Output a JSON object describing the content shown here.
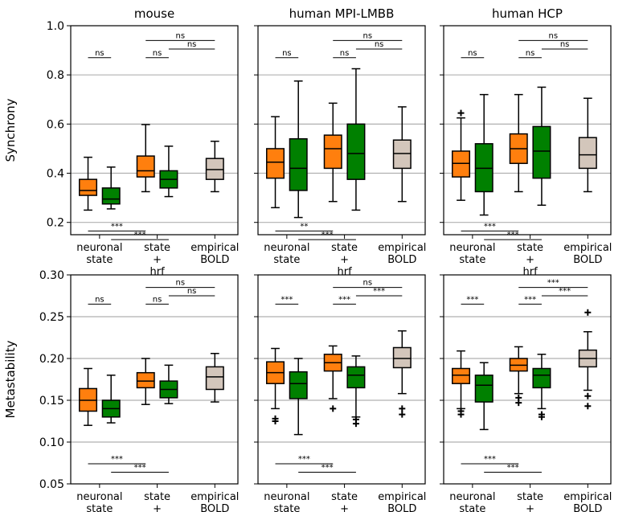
{
  "colors": {
    "orange": "#ff7f0e",
    "green": "#008000",
    "beige": "#d3c6bb",
    "grid": "#b0b0b0",
    "axis": "#000000"
  },
  "chart_data": {
    "type": "boxplot",
    "category_labels": [
      {
        "id": "neuronal",
        "lines": [
          "neuronal",
          "state"
        ]
      },
      {
        "id": "state",
        "lines": [
          "state",
          "+",
          "hrf"
        ]
      },
      {
        "id": "empirical",
        "lines": [
          "empirical",
          "BOLD"
        ]
      }
    ],
    "boxes_legend": [
      "neuronal state (orange)",
      "neuronal state (green)",
      "state + hrf (orange)",
      "state + hrf (green)",
      "empirical BOLD (beige)"
    ],
    "rows": [
      {
        "ylabel": "Synchrony",
        "ylim": [
          0.15,
          1.0
        ],
        "yticks": [
          {
            "v": 0.2,
            "label": "0.2"
          },
          {
            "v": 0.4,
            "label": "0.4"
          },
          {
            "v": 0.6,
            "label": "0.6"
          },
          {
            "v": 0.8,
            "label": "0.8"
          },
          {
            "v": 1.0,
            "label": "1.0"
          }
        ],
        "panels": [
          {
            "title": "mouse",
            "boxes": [
              {
                "pos": 0.8,
                "color": "orange",
                "q1": 0.31,
                "med": 0.33,
                "q3": 0.375,
                "lo": 0.25,
                "hi": 0.465,
                "fl": []
              },
              {
                "pos": 1.2,
                "color": "green",
                "q1": 0.275,
                "med": 0.295,
                "q3": 0.34,
                "lo": 0.255,
                "hi": 0.425,
                "fl": []
              },
              {
                "pos": 1.8,
                "color": "orange",
                "q1": 0.385,
                "med": 0.41,
                "q3": 0.47,
                "lo": 0.325,
                "hi": 0.598,
                "fl": []
              },
              {
                "pos": 2.2,
                "color": "green",
                "q1": 0.34,
                "med": 0.375,
                "q3": 0.41,
                "lo": 0.305,
                "hi": 0.51,
                "fl": []
              },
              {
                "pos": 3.0,
                "color": "beige",
                "q1": 0.375,
                "med": 0.415,
                "q3": 0.46,
                "lo": 0.325,
                "hi": 0.53,
                "fl": []
              }
            ],
            "sig": [
              {
                "x1": 0.8,
                "x2": 1.2,
                "y": 0.87,
                "label": "ns"
              },
              {
                "x1": 1.8,
                "x2": 2.2,
                "y": 0.87,
                "label": "ns"
              },
              {
                "x1": 2.2,
                "x2": 3.0,
                "y": 0.905,
                "label": "ns"
              },
              {
                "x1": 1.8,
                "x2": 3.0,
                "y": 0.94,
                "label": "ns"
              },
              {
                "x1": 0.8,
                "x2": 1.8,
                "y": 0.165,
                "label": "***"
              },
              {
                "x1": 1.2,
                "x2": 2.2,
                "y": 0.13,
                "label": "***"
              }
            ]
          },
          {
            "title": "human MPI-LMBB",
            "boxes": [
              {
                "pos": 0.8,
                "color": "orange",
                "q1": 0.38,
                "med": 0.445,
                "q3": 0.5,
                "lo": 0.26,
                "hi": 0.63,
                "fl": []
              },
              {
                "pos": 1.2,
                "color": "green",
                "q1": 0.33,
                "med": 0.42,
                "q3": 0.54,
                "lo": 0.22,
                "hi": 0.775,
                "fl": []
              },
              {
                "pos": 1.8,
                "color": "orange",
                "q1": 0.42,
                "med": 0.5,
                "q3": 0.555,
                "lo": 0.285,
                "hi": 0.685,
                "fl": []
              },
              {
                "pos": 2.2,
                "color": "green",
                "q1": 0.375,
                "med": 0.48,
                "q3": 0.6,
                "lo": 0.25,
                "hi": 0.825,
                "fl": []
              },
              {
                "pos": 3.0,
                "color": "beige",
                "q1": 0.42,
                "med": 0.48,
                "q3": 0.535,
                "lo": 0.285,
                "hi": 0.67,
                "fl": []
              }
            ],
            "sig": [
              {
                "x1": 0.8,
                "x2": 1.2,
                "y": 0.87,
                "label": "ns"
              },
              {
                "x1": 1.8,
                "x2": 2.2,
                "y": 0.87,
                "label": "ns"
              },
              {
                "x1": 2.2,
                "x2": 3.0,
                "y": 0.905,
                "label": "ns"
              },
              {
                "x1": 1.8,
                "x2": 3.0,
                "y": 0.94,
                "label": "ns"
              },
              {
                "x1": 0.8,
                "x2": 1.8,
                "y": 0.165,
                "label": "**"
              },
              {
                "x1": 1.2,
                "x2": 2.2,
                "y": 0.13,
                "label": "***"
              }
            ]
          },
          {
            "title": "human HCP",
            "boxes": [
              {
                "pos": 0.8,
                "color": "orange",
                "q1": 0.385,
                "med": 0.44,
                "q3": 0.49,
                "lo": 0.29,
                "hi": 0.625,
                "fl": [
                  0.645
                ]
              },
              {
                "pos": 1.2,
                "color": "green",
                "q1": 0.325,
                "med": 0.42,
                "q3": 0.52,
                "lo": 0.23,
                "hi": 0.72,
                "fl": []
              },
              {
                "pos": 1.8,
                "color": "orange",
                "q1": 0.44,
                "med": 0.5,
                "q3": 0.56,
                "lo": 0.325,
                "hi": 0.72,
                "fl": []
              },
              {
                "pos": 2.2,
                "color": "green",
                "q1": 0.38,
                "med": 0.49,
                "q3": 0.59,
                "lo": 0.27,
                "hi": 0.75,
                "fl": []
              },
              {
                "pos": 3.0,
                "color": "beige",
                "q1": 0.42,
                "med": 0.475,
                "q3": 0.545,
                "lo": 0.325,
                "hi": 0.705,
                "fl": []
              }
            ],
            "sig": [
              {
                "x1": 0.8,
                "x2": 1.2,
                "y": 0.87,
                "label": "ns"
              },
              {
                "x1": 1.8,
                "x2": 2.2,
                "y": 0.87,
                "label": "ns"
              },
              {
                "x1": 2.2,
                "x2": 3.0,
                "y": 0.905,
                "label": "ns"
              },
              {
                "x1": 1.8,
                "x2": 3.0,
                "y": 0.94,
                "label": "ns"
              },
              {
                "x1": 0.8,
                "x2": 1.8,
                "y": 0.165,
                "label": "***"
              },
              {
                "x1": 1.2,
                "x2": 2.2,
                "y": 0.13,
                "label": "***"
              }
            ]
          }
        ]
      },
      {
        "ylabel": "Metastability",
        "ylim": [
          0.05,
          0.3
        ],
        "yticks": [
          {
            "v": 0.05,
            "label": "0.05"
          },
          {
            "v": 0.1,
            "label": "0.10"
          },
          {
            "v": 0.15,
            "label": "0.15"
          },
          {
            "v": 0.2,
            "label": "0.20"
          },
          {
            "v": 0.25,
            "label": "0.25"
          },
          {
            "v": 0.3,
            "label": "0.30"
          }
        ],
        "panels": [
          {
            "title": "",
            "boxes": [
              {
                "pos": 0.8,
                "color": "orange",
                "q1": 0.137,
                "med": 0.15,
                "q3": 0.164,
                "lo": 0.12,
                "hi": 0.188,
                "fl": []
              },
              {
                "pos": 1.2,
                "color": "green",
                "q1": 0.13,
                "med": 0.14,
                "q3": 0.15,
                "lo": 0.123,
                "hi": 0.18,
                "fl": []
              },
              {
                "pos": 1.8,
                "color": "orange",
                "q1": 0.165,
                "med": 0.173,
                "q3": 0.183,
                "lo": 0.145,
                "hi": 0.2,
                "fl": []
              },
              {
                "pos": 2.2,
                "color": "green",
                "q1": 0.153,
                "med": 0.163,
                "q3": 0.173,
                "lo": 0.146,
                "hi": 0.192,
                "fl": []
              },
              {
                "pos": 3.0,
                "color": "beige",
                "q1": 0.163,
                "med": 0.178,
                "q3": 0.19,
                "lo": 0.148,
                "hi": 0.206,
                "fl": []
              }
            ],
            "sig": [
              {
                "x1": 0.8,
                "x2": 1.2,
                "y": 0.265,
                "label": "ns"
              },
              {
                "x1": 1.8,
                "x2": 2.2,
                "y": 0.265,
                "label": "ns"
              },
              {
                "x1": 2.2,
                "x2": 3.0,
                "y": 0.275,
                "label": "ns"
              },
              {
                "x1": 1.8,
                "x2": 3.0,
                "y": 0.285,
                "label": "ns"
              },
              {
                "x1": 0.8,
                "x2": 1.8,
                "y": 0.074,
                "label": "***"
              },
              {
                "x1": 1.2,
                "x2": 2.2,
                "y": 0.064,
                "label": "***"
              }
            ]
          },
          {
            "title": "",
            "boxes": [
              {
                "pos": 0.8,
                "color": "orange",
                "q1": 0.17,
                "med": 0.183,
                "q3": 0.196,
                "lo": 0.14,
                "hi": 0.212,
                "fl": [
                  0.125,
                  0.128
                ]
              },
              {
                "pos": 1.2,
                "color": "green",
                "q1": 0.152,
                "med": 0.17,
                "q3": 0.184,
                "lo": 0.109,
                "hi": 0.2,
                "fl": []
              },
              {
                "pos": 1.8,
                "color": "orange",
                "q1": 0.185,
                "med": 0.195,
                "q3": 0.205,
                "lo": 0.152,
                "hi": 0.215,
                "fl": [
                  0.14
                ]
              },
              {
                "pos": 2.2,
                "color": "green",
                "q1": 0.165,
                "med": 0.18,
                "q3": 0.19,
                "lo": 0.13,
                "hi": 0.203,
                "fl": [
                  0.122,
                  0.127
                ]
              },
              {
                "pos": 3.0,
                "color": "beige",
                "q1": 0.189,
                "med": 0.2,
                "q3": 0.213,
                "lo": 0.158,
                "hi": 0.233,
                "fl": [
                  0.133,
                  0.14
                ]
              }
            ],
            "sig": [
              {
                "x1": 0.8,
                "x2": 1.2,
                "y": 0.265,
                "label": "***"
              },
              {
                "x1": 1.8,
                "x2": 2.2,
                "y": 0.265,
                "label": "***"
              },
              {
                "x1": 2.2,
                "x2": 3.0,
                "y": 0.275,
                "label": "***"
              },
              {
                "x1": 1.8,
                "x2": 3.0,
                "y": 0.285,
                "label": "ns"
              },
              {
                "x1": 0.8,
                "x2": 1.8,
                "y": 0.074,
                "label": "***"
              },
              {
                "x1": 1.2,
                "x2": 2.2,
                "y": 0.064,
                "label": "***"
              }
            ]
          },
          {
            "title": "",
            "boxes": [
              {
                "pos": 0.8,
                "color": "orange",
                "q1": 0.17,
                "med": 0.18,
                "q3": 0.188,
                "lo": 0.14,
                "hi": 0.209,
                "fl": [
                  0.133,
                  0.137
                ]
              },
              {
                "pos": 1.2,
                "color": "green",
                "q1": 0.148,
                "med": 0.168,
                "q3": 0.18,
                "lo": 0.115,
                "hi": 0.195,
                "fl": []
              },
              {
                "pos": 1.8,
                "color": "orange",
                "q1": 0.185,
                "med": 0.192,
                "q3": 0.2,
                "lo": 0.158,
                "hi": 0.214,
                "fl": [
                  0.147,
                  0.153
                ]
              },
              {
                "pos": 2.2,
                "color": "green",
                "q1": 0.165,
                "med": 0.18,
                "q3": 0.188,
                "lo": 0.14,
                "hi": 0.205,
                "fl": [
                  0.13,
                  0.133
                ]
              },
              {
                "pos": 3.0,
                "color": "beige",
                "q1": 0.19,
                "med": 0.2,
                "q3": 0.21,
                "lo": 0.162,
                "hi": 0.232,
                "fl": [
                  0.143,
                  0.155,
                  0.255
                ]
              }
            ],
            "sig": [
              {
                "x1": 0.8,
                "x2": 1.2,
                "y": 0.265,
                "label": "***"
              },
              {
                "x1": 1.8,
                "x2": 2.2,
                "y": 0.265,
                "label": "***"
              },
              {
                "x1": 2.2,
                "x2": 3.0,
                "y": 0.275,
                "label": "***"
              },
              {
                "x1": 1.8,
                "x2": 3.0,
                "y": 0.285,
                "label": "***"
              },
              {
                "x1": 0.8,
                "x2": 1.8,
                "y": 0.074,
                "label": "***"
              },
              {
                "x1": 1.2,
                "x2": 2.2,
                "y": 0.064,
                "label": "***"
              }
            ]
          }
        ]
      }
    ]
  }
}
